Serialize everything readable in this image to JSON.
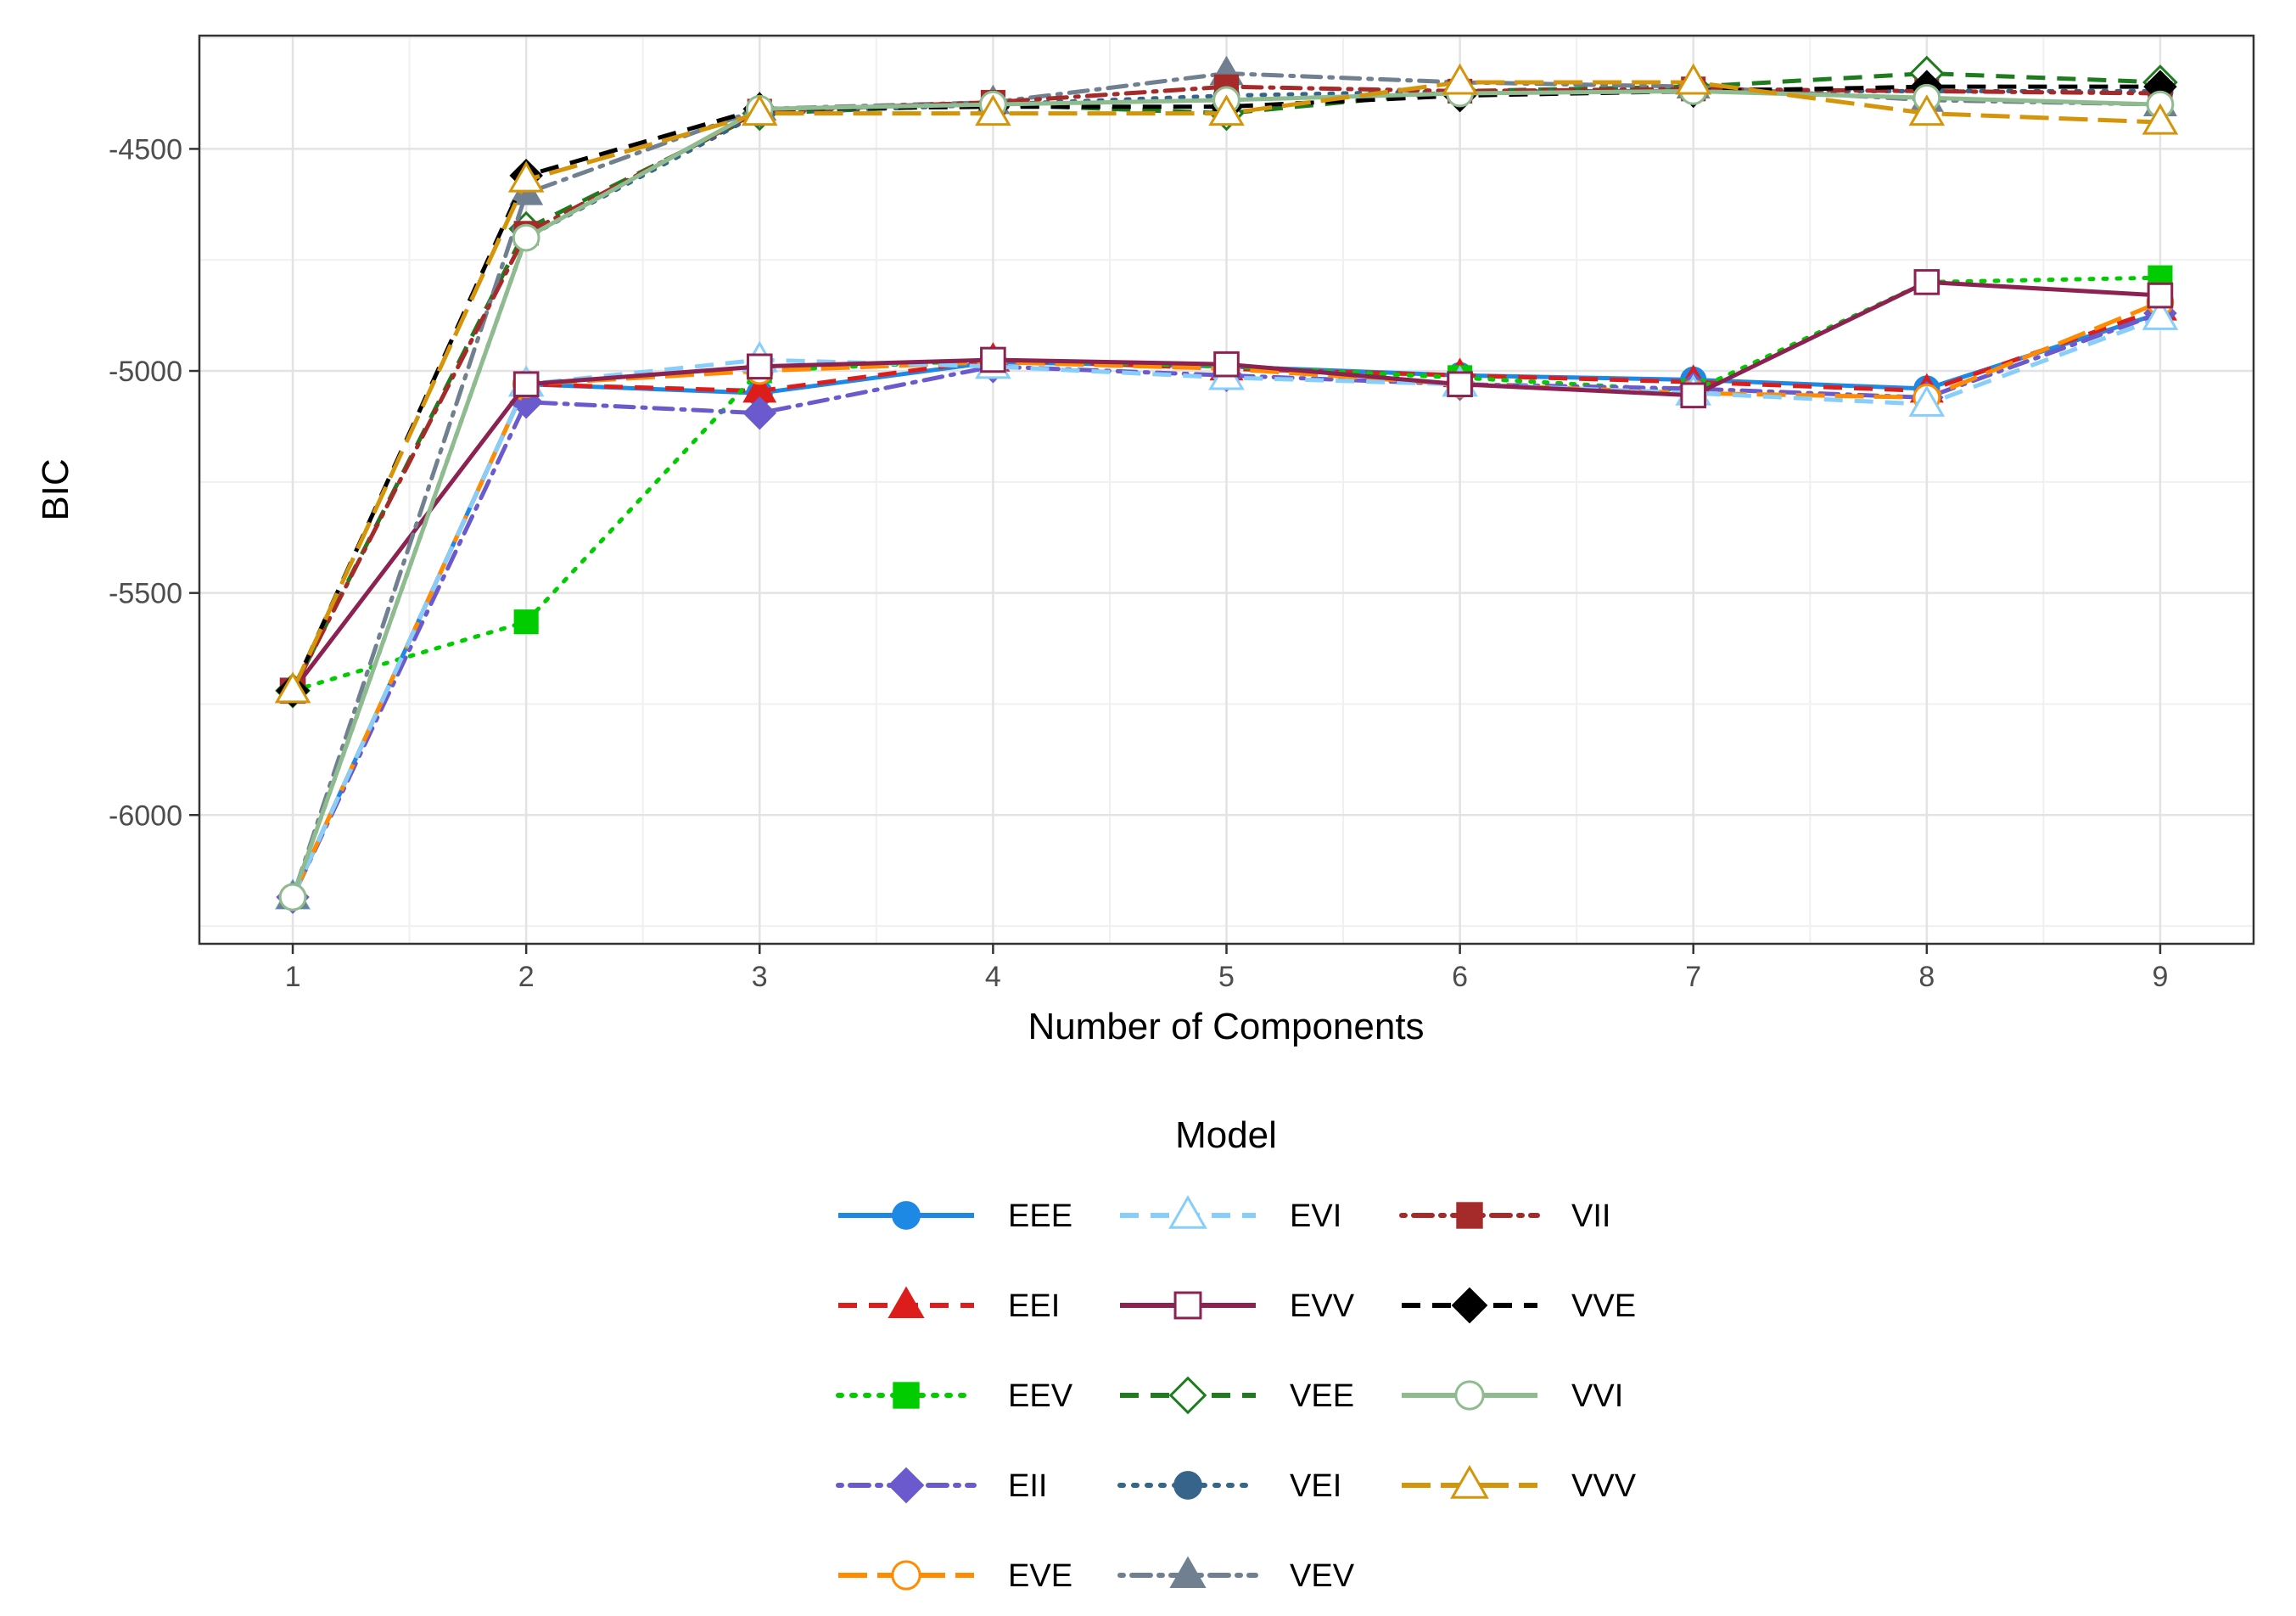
{
  "chart_data": {
    "type": "line",
    "xlabel": "Number of Components",
    "ylabel": "BIC",
    "x": [
      1,
      2,
      3,
      4,
      5,
      6,
      7,
      8,
      9
    ],
    "xlim": [
      0.6,
      9.4
    ],
    "ylim": [
      -6290,
      -4245
    ],
    "x_ticks": [
      "1",
      "2",
      "3",
      "4",
      "5",
      "6",
      "7",
      "8",
      "9"
    ],
    "y_ticks": [
      -6000,
      -5500,
      -5000,
      -4500
    ],
    "y_tick_labels": [
      "-6000",
      "-5500",
      "-5000",
      "-4500"
    ],
    "grid": true,
    "legend_title": "Model",
    "legend_position": "bottom",
    "series": [
      {
        "name": "EEE",
        "color": "#1E88E5",
        "dash": "solid",
        "marker": "circle",
        "filled": true,
        "values": [
          -6185,
          -5030,
          -5050,
          -4980,
          -4990,
          -5010,
          -5020,
          -5040,
          -4870
        ]
      },
      {
        "name": "EEI",
        "color": "#DD1C1C",
        "dash": "dash",
        "marker": "triangle",
        "filled": true,
        "values": [
          -6185,
          -5030,
          -5045,
          -4975,
          -4995,
          -5010,
          -5025,
          -5045,
          -4860
        ]
      },
      {
        "name": "EEV",
        "color": "#00CC00",
        "dash": "dot",
        "marker": "square",
        "filled": true,
        "values": [
          -5720,
          -5565,
          -5000,
          -4975,
          -4990,
          -5015,
          -5045,
          -4800,
          -4790
        ]
      },
      {
        "name": "EII",
        "color": "#6A5ACD",
        "dash": "dashdot",
        "marker": "diamond",
        "filled": true,
        "values": [
          -6185,
          -5070,
          -5095,
          -4990,
          -5010,
          -5030,
          -5040,
          -5060,
          -4870
        ]
      },
      {
        "name": "EVE",
        "color": "#FF8C00",
        "dash": "longdash",
        "marker": "circle",
        "filled": false,
        "values": [
          -6185,
          -5030,
          -5000,
          -4980,
          -4995,
          -5030,
          -5050,
          -5060,
          -4845
        ]
      },
      {
        "name": "EVI",
        "color": "#87CEFA",
        "dash": "dash",
        "marker": "triangle",
        "filled": false,
        "values": [
          -6185,
          -5030,
          -4975,
          -4990,
          -5015,
          -5030,
          -5050,
          -5075,
          -4880
        ]
      },
      {
        "name": "EVV",
        "color": "#8B2252",
        "dash": "solid",
        "marker": "square",
        "filled": false,
        "values": [
          -5720,
          -5030,
          -4990,
          -4975,
          -4985,
          -5030,
          -5055,
          -4800,
          -4830
        ]
      },
      {
        "name": "VEE",
        "color": "#1E7B1E",
        "dash": "dash",
        "marker": "diamond",
        "filled": false,
        "values": [
          -5720,
          -4680,
          -4420,
          -4400,
          -4420,
          -4370,
          -4360,
          -4330,
          -4350
        ]
      },
      {
        "name": "VEI",
        "color": "#36648B",
        "dash": "dot",
        "marker": "circle",
        "filled": true,
        "values": [
          -6185,
          -4700,
          -4420,
          -4400,
          -4380,
          -4370,
          -4370,
          -4370,
          -4370
        ]
      },
      {
        "name": "VEV",
        "color": "#708090",
        "dash": "dashdot",
        "marker": "triangle",
        "filled": true,
        "values": [
          -6185,
          -4600,
          -4410,
          -4395,
          -4330,
          -4350,
          -4360,
          -4390,
          -4400
        ]
      },
      {
        "name": "VII",
        "color": "#A52A2A",
        "dash": "dashdot",
        "marker": "square",
        "filled": true,
        "values": [
          -5720,
          -4690,
          -4415,
          -4395,
          -4360,
          -4370,
          -4365,
          -4370,
          -4375
        ]
      },
      {
        "name": "VVE",
        "color": "#000000",
        "dash": "dash",
        "marker": "diamond",
        "filled": true,
        "values": [
          -5720,
          -4560,
          -4410,
          -4405,
          -4405,
          -4380,
          -4370,
          -4360,
          -4360
        ]
      },
      {
        "name": "VVI",
        "color": "#8FBC8F",
        "dash": "solid",
        "marker": "circle",
        "filled": false,
        "values": [
          -6185,
          -4700,
          -4410,
          -4400,
          -4390,
          -4375,
          -4370,
          -4385,
          -4400
        ]
      },
      {
        "name": "VVV",
        "color": "#D4950A",
        "dash": "longdash",
        "marker": "triangle",
        "filled": false,
        "values": [
          -5720,
          -4570,
          -4420,
          -4420,
          -4420,
          -4350,
          -4350,
          -4420,
          -4440
        ]
      }
    ]
  }
}
